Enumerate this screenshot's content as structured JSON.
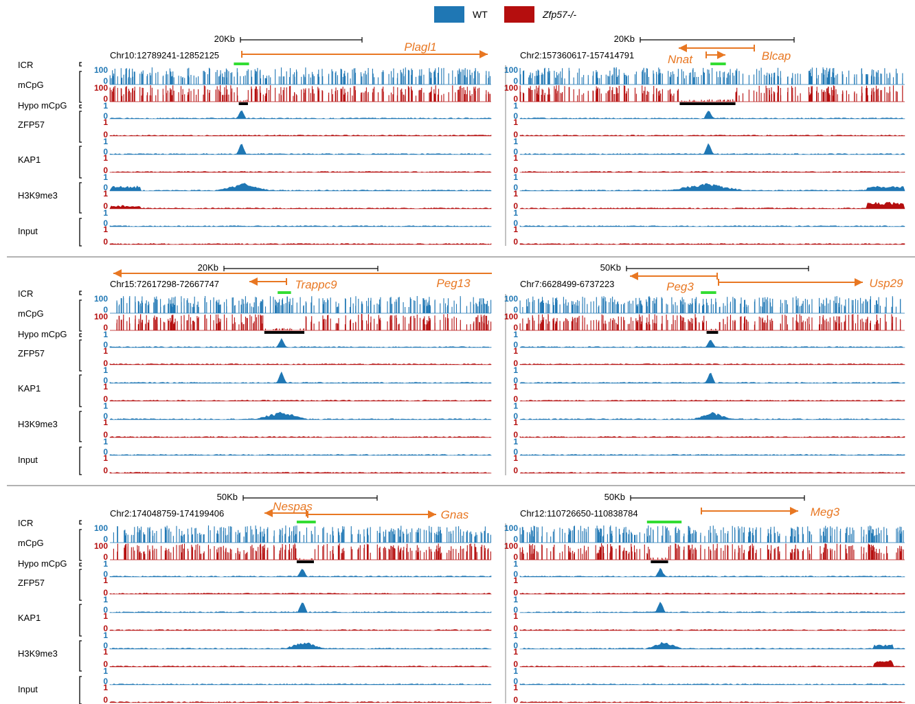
{
  "legend": [
    {
      "label": "WT",
      "italic": false,
      "color": "#1F77B4"
    },
    {
      "label": "Zfp57-/-",
      "italic": true,
      "color": "#B50E0E"
    }
  ],
  "colors": {
    "wt": "#1F77B4",
    "ko": "#B50E0E",
    "gene": "#E87722",
    "icr": "#33DD33",
    "hypo": "#000000",
    "divider": "#999999"
  },
  "tracks": {
    "icr": "ICR",
    "mcpg": "mCpG",
    "hypo": "Hypo mCpG",
    "zfp57": "ZFP57",
    "kap1": "KAP1",
    "h3k9me3": "H3K9me3",
    "input": "Input",
    "mcpg_max": "100",
    "mcpg_min": "0",
    "chip_max": "1",
    "chip_min": "0"
  },
  "panels": [
    {
      "id": "plagl1",
      "coords": "Chr10:12789241-12852125",
      "scale": "20Kb",
      "genes": [
        {
          "name": "Plagl1",
          "dir": "right"
        }
      ],
      "icr_frac": [
        0.325,
        0.365
      ],
      "hypo_frac": [
        0.338,
        0.362
      ],
      "peak_frac": 0.345,
      "k9_frac": [
        0.28,
        0.42
      ],
      "k9_extra": [
        0.0,
        0.08
      ]
    },
    {
      "id": "nnat",
      "coords": "Chr2:157360617-157414791",
      "scale": "20Kb",
      "genes": [
        {
          "name": "Nnat",
          "dir": "left"
        },
        {
          "name": "Blcap",
          "dir": "right"
        }
      ],
      "icr_frac": [
        0.495,
        0.535
      ],
      "hypo_frac": [
        0.415,
        0.56
      ],
      "peak_frac": 0.49,
      "k9_frac": [
        0.39,
        0.58
      ],
      "k9_extra": [
        0.9,
        1.0
      ]
    },
    {
      "id": "peg13",
      "coords": "Chr15:72617298-72667747",
      "scale": "20Kb",
      "genes": [
        {
          "name": "Peg13",
          "dir": "left"
        },
        {
          "name": "Trappc9",
          "dir": "left"
        }
      ],
      "icr_frac": [
        0.44,
        0.475
      ],
      "hypo_frac": [
        0.405,
        0.51
      ],
      "peak_frac": 0.45,
      "k9_frac": [
        0.38,
        0.52
      ],
      "k9_extra": null
    },
    {
      "id": "peg3",
      "coords": "Chr7:6628499-6737223",
      "scale": "50Kb",
      "genes": [
        {
          "name": "Peg3",
          "dir": "left"
        },
        {
          "name": "Usp29",
          "dir": "right"
        }
      ],
      "icr_frac": [
        0.47,
        0.51
      ],
      "hypo_frac": [
        0.485,
        0.515
      ],
      "peak_frac": 0.495,
      "k9_frac": [
        0.45,
        0.55
      ],
      "k9_extra": null
    },
    {
      "id": "nespas",
      "coords": "Chr2:174048759-174199406",
      "scale": "50Kb",
      "genes": [
        {
          "name": "Nespas",
          "dir": "left"
        },
        {
          "name": "Gnas",
          "dir": "right"
        }
      ],
      "icr_frac": [
        0.49,
        0.54
      ],
      "hypo_frac": [
        0.49,
        0.535
      ],
      "peak_frac": 0.505,
      "k9_frac": [
        0.46,
        0.56
      ],
      "k9_extra": null
    },
    {
      "id": "meg3",
      "coords": "Chr12:110726650-110838784",
      "scale": "50Kb",
      "genes": [
        {
          "name": "Meg3",
          "dir": "right"
        }
      ],
      "icr_frac": [
        0.33,
        0.42
      ],
      "hypo_frac": [
        0.34,
        0.385
      ],
      "peak_frac": 0.365,
      "k9_frac": [
        0.33,
        0.42
      ],
      "k9_extra": [
        0.92,
        0.97
      ]
    }
  ]
}
